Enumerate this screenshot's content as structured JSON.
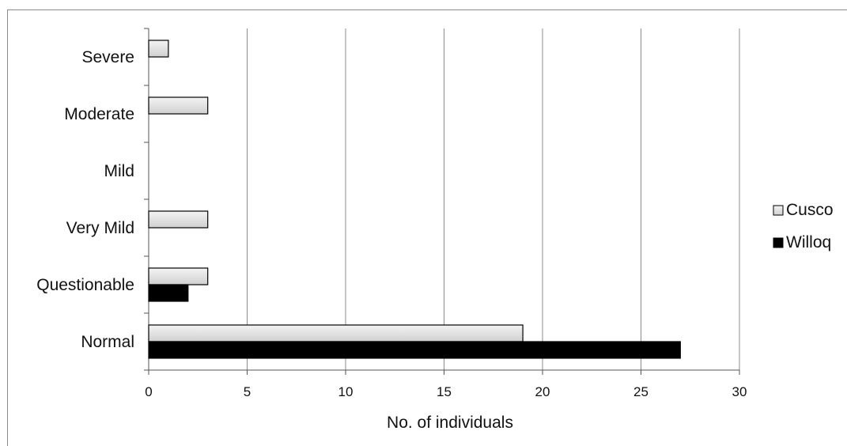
{
  "chart_data": {
    "type": "bar",
    "orientation": "horizontal",
    "categories": [
      "Normal",
      "Questionable",
      "Very Mild",
      "Mild",
      "Moderate",
      "Severe"
    ],
    "series": [
      {
        "name": "Cusco",
        "values": [
          19,
          3,
          3,
          0,
          3,
          1
        ],
        "color": "#e2e2e2"
      },
      {
        "name": "Willoq",
        "values": [
          27,
          2,
          0,
          0,
          0,
          0
        ],
        "color": "#000000"
      }
    ],
    "xlabel": "No. of individuals",
    "ylabel": "",
    "xlim": [
      0,
      30
    ],
    "xticks": [
      "0",
      "5",
      "10",
      "15",
      "20",
      "25",
      "30"
    ],
    "grid": "vertical",
    "legend": "right"
  }
}
